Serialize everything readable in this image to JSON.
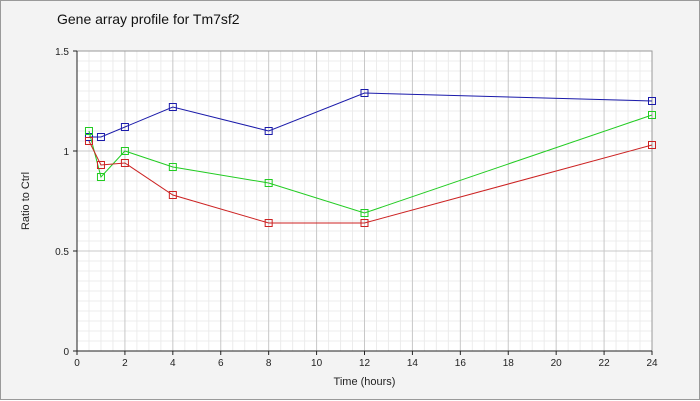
{
  "chart_data": {
    "type": "line",
    "title": "Gene array profile for Tm7sf2",
    "xlabel": "Time (hours)",
    "ylabel": "Ratio to Ctrl",
    "xlim": [
      0,
      24
    ],
    "ylim": [
      0,
      1.5
    ],
    "x_ticks": [
      0,
      2,
      4,
      6,
      8,
      10,
      12,
      14,
      16,
      18,
      20,
      22,
      24
    ],
    "y_ticks": [
      0,
      0.5,
      1,
      1.5
    ],
    "y_tick_labels": [
      "0",
      "0.5",
      "1",
      "1.5"
    ],
    "grid": true,
    "marker": "square",
    "series": [
      {
        "color": "#1a1aaa",
        "x": [
          0.5,
          1,
          2,
          4,
          8,
          12,
          24
        ],
        "y": [
          1.07,
          1.07,
          1.12,
          1.22,
          1.1,
          1.29,
          1.25
        ]
      },
      {
        "color": "#22cc22",
        "x": [
          0.5,
          1,
          2,
          4,
          8,
          12,
          24
        ],
        "y": [
          1.1,
          0.87,
          1.0,
          0.92,
          0.84,
          0.69,
          1.18
        ]
      },
      {
        "color": "#cc2222",
        "x": [
          0.5,
          1,
          2,
          4,
          8,
          12,
          24
        ],
        "y": [
          1.05,
          0.93,
          0.94,
          0.78,
          0.64,
          0.64,
          1.03
        ]
      }
    ]
  }
}
